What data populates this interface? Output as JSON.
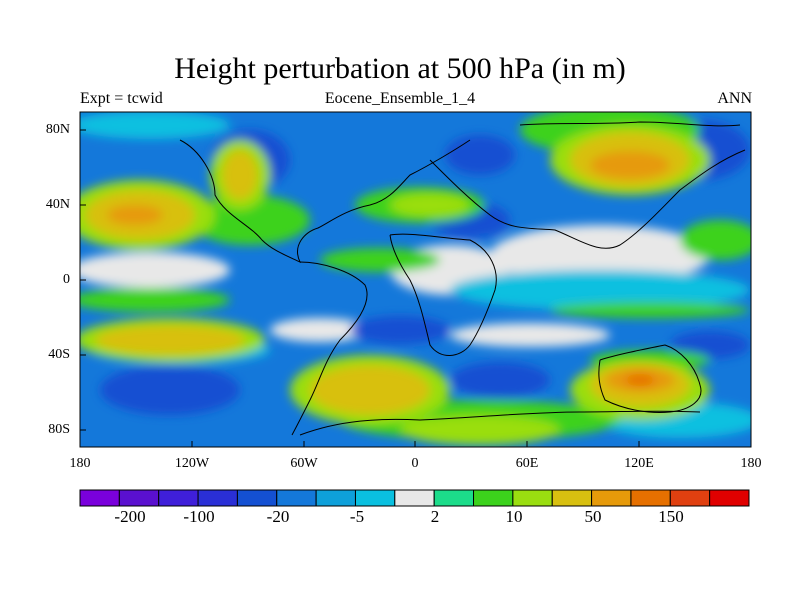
{
  "title": "Height perturbation at 500 hPa (in m)",
  "subtitle_left": "Expt = tcwid",
  "subtitle_center": "Eocene_Ensemble_1_4",
  "subtitle_right": "ANN",
  "lat_ticks": [
    "80N",
    "40N",
    "0",
    "40S",
    "80S"
  ],
  "lon_ticks": [
    "180",
    "120W",
    "60W",
    "0",
    "60E",
    "120E",
    "180"
  ],
  "colorbar": {
    "colors": [
      "#7a00dc",
      "#5a10cf",
      "#3f1fd9",
      "#2a2fd6",
      "#1450d2",
      "#1478da",
      "#0ea0da",
      "#0ac0e0",
      "#e8e8e8",
      "#1cdc8a",
      "#3cd21c",
      "#9ade10",
      "#d8c010",
      "#e69a0a",
      "#e67000",
      "#e04010",
      "#e00000"
    ],
    "labels": [
      "-200",
      "-100",
      "-20",
      "-5",
      "2",
      "10",
      "50",
      "150"
    ]
  },
  "map_colors": {
    "neutral": "#e8e8e8",
    "deep_blue": "#1450d2",
    "mid_blue": "#1478da",
    "light_blue": "#0ea0da",
    "cyan": "#0ac0e0",
    "green": "#3cd21c",
    "yellowgreen": "#9ade10",
    "yellow": "#d8c010",
    "orange": "#e69a0a",
    "dark_orange": "#e67000",
    "navy": "#2a2fd6"
  }
}
